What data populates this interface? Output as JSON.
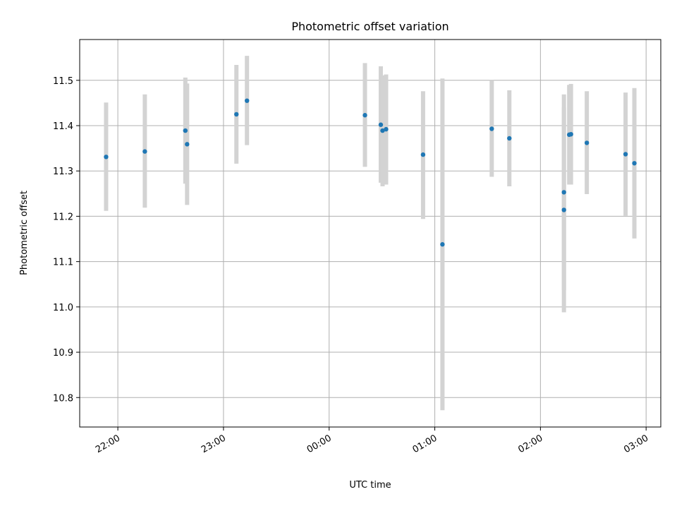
{
  "chart_data": {
    "type": "scatter",
    "title": "Photometric offset variation",
    "xlabel": "UTC time",
    "ylabel": "Photometric offset",
    "x_ticks": [
      "22:00",
      "23:00",
      "00:00",
      "01:00",
      "02:00",
      "03:00"
    ],
    "x_tick_times": [
      "21:59:40",
      "22:59:40",
      "23:59:40",
      "00:59:40",
      "01:59:40",
      "02:59:40"
    ],
    "y_ticks": [
      "10.8",
      "10.9",
      "11.0",
      "11.1",
      "11.2",
      "11.3",
      "11.4",
      "11.5"
    ],
    "xlim": [
      "21:38",
      "03:08"
    ],
    "ylim": [
      10.735,
      11.59
    ],
    "grid": true,
    "colors": {
      "points": "#1f77b4",
      "errorbars": "#d3d3d3",
      "grid": "#b0b0b0"
    },
    "points": [
      {
        "x": "21:53",
        "y": 11.331,
        "err_low": 11.212,
        "err_high": 11.451
      },
      {
        "x": "22:15",
        "y": 11.343,
        "err_low": 11.219,
        "err_high": 11.469
      },
      {
        "x": "22:38",
        "y": 11.389,
        "err_low": 11.272,
        "err_high": 11.506
      },
      {
        "x": "22:39",
        "y": 11.359,
        "err_low": 11.225,
        "err_high": 11.493
      },
      {
        "x": "23:07",
        "y": 11.425,
        "err_low": 11.316,
        "err_high": 11.534
      },
      {
        "x": "23:13",
        "y": 11.455,
        "err_low": 11.357,
        "err_high": 11.554
      },
      {
        "x": "00:20",
        "y": 11.423,
        "err_low": 11.309,
        "err_high": 11.538
      },
      {
        "x": "00:29",
        "y": 11.402,
        "err_low": 11.274,
        "err_high": 11.531
      },
      {
        "x": "00:30",
        "y": 11.389,
        "err_low": 11.266,
        "err_high": 11.511
      },
      {
        "x": "00:32",
        "y": 11.392,
        "err_low": 11.27,
        "err_high": 11.513
      },
      {
        "x": "00:53",
        "y": 11.336,
        "err_low": 11.194,
        "err_high": 11.476
      },
      {
        "x": "01:04",
        "y": 11.138,
        "err_low": 10.772,
        "err_high": 11.504
      },
      {
        "x": "01:32",
        "y": 11.393,
        "err_low": 11.287,
        "err_high": 11.5
      },
      {
        "x": "01:42",
        "y": 11.372,
        "err_low": 11.266,
        "err_high": 11.478
      },
      {
        "x": "02:13",
        "y": 11.214,
        "err_low": 10.988,
        "err_high": 11.44
      },
      {
        "x": "02:13",
        "y": 11.253,
        "err_low": 11.037,
        "err_high": 11.469
      },
      {
        "x": "02:16",
        "y": 11.38,
        "err_low": 11.27,
        "err_high": 11.49
      },
      {
        "x": "02:17",
        "y": 11.381,
        "err_low": 11.27,
        "err_high": 11.492
      },
      {
        "x": "02:26",
        "y": 11.362,
        "err_low": 11.249,
        "err_high": 11.476
      },
      {
        "x": "02:48",
        "y": 11.337,
        "err_low": 11.201,
        "err_high": 11.473
      },
      {
        "x": "02:53",
        "y": 11.317,
        "err_low": 11.151,
        "err_high": 11.483
      }
    ]
  }
}
